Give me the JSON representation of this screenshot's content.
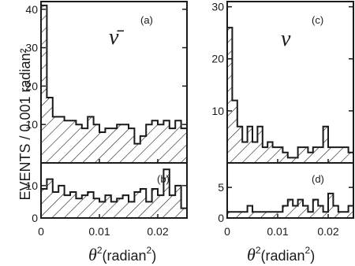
{
  "chart_data": {
    "type": "bar",
    "ylabel": "EVENTS / 0.001 radian²",
    "xlabel_symbol": "θ",
    "xlabel_power": "2",
    "xlabel_unit": "(radian",
    "xlabel_unit_power": "2",
    "xlabel_close": ")",
    "x_range": [
      0,
      0.025
    ],
    "bin_width": 0.001,
    "x_ticks": [
      "0",
      "0.01",
      "0.02"
    ],
    "panels": [
      {
        "label": "(a)",
        "particle": "ν̄",
        "ylim": [
          0,
          42
        ],
        "y_ticks": [
          "10",
          "20",
          "30",
          "40"
        ],
        "values": [
          41,
          17,
          12,
          12,
          11,
          11,
          10,
          9,
          12,
          10,
          8,
          9,
          9,
          10,
          10,
          9,
          5,
          7,
          10,
          11,
          10,
          11,
          9,
          11,
          9
        ]
      },
      {
        "label": "(b)",
        "particle": "",
        "ylim": [
          0,
          17
        ],
        "y_ticks": [
          "0",
          "10"
        ],
        "values": [
          9,
          12,
          8,
          10,
          7,
          8,
          6,
          7,
          8,
          6,
          5,
          7,
          5,
          6,
          7,
          5,
          8,
          9,
          5,
          9,
          7,
          15,
          7,
          10,
          3
        ]
      },
      {
        "label": "(c)",
        "particle": "ν",
        "ylim": [
          0,
          31
        ],
        "y_ticks": [
          "10",
          "20",
          "30"
        ],
        "values": [
          26,
          12,
          7,
          4,
          7,
          4,
          7,
          3,
          4,
          3,
          3,
          2,
          1,
          1,
          3,
          3,
          2,
          3,
          3,
          7,
          3,
          3,
          3,
          3,
          2
        ]
      },
      {
        "label": "(d)",
        "particle": "",
        "ylim": [
          0,
          9
        ],
        "y_ticks": [
          "0",
          "5"
        ],
        "values": [
          1,
          1,
          1,
          1,
          2,
          1,
          1,
          1,
          1,
          1,
          1,
          2,
          3,
          2,
          3,
          2,
          1,
          3,
          2,
          1,
          4,
          2,
          1,
          1,
          2
        ]
      }
    ]
  }
}
